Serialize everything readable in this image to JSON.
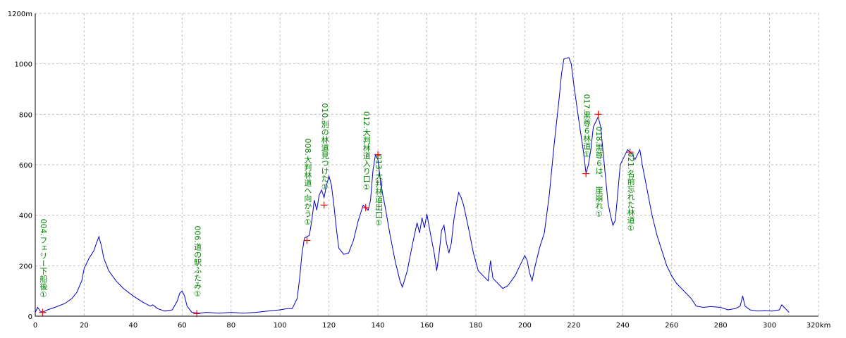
{
  "chart_data": {
    "type": "line",
    "x": [
      0,
      1,
      2,
      3,
      5,
      8,
      12,
      15,
      17,
      19,
      20,
      22,
      24,
      25,
      26,
      27,
      28,
      30,
      33,
      36,
      40,
      44,
      47,
      48,
      50,
      53,
      56,
      58,
      59,
      60,
      61,
      62,
      64,
      67,
      70,
      75,
      80,
      85,
      90,
      95,
      100,
      103,
      105,
      107,
      108,
      109,
      110,
      112,
      113,
      114,
      115,
      116,
      117,
      118,
      119,
      120,
      121,
      122,
      123,
      124,
      126,
      128,
      130,
      132,
      134,
      135,
      136,
      137,
      138,
      139,
      140,
      141,
      142,
      143,
      145,
      147,
      149,
      150,
      152,
      154,
      156,
      157,
      158,
      159,
      160,
      161,
      162,
      163,
      164,
      165,
      166,
      167,
      168,
      169,
      170,
      171,
      172,
      173,
      174,
      175,
      177,
      179,
      181,
      183,
      185,
      186,
      187,
      189,
      191,
      193,
      196,
      198,
      200,
      201,
      202,
      203,
      204,
      206,
      208,
      210,
      212,
      214,
      215,
      216,
      218,
      219,
      220,
      222,
      224,
      225,
      226,
      227,
      228,
      230,
      231,
      232,
      234,
      235,
      236,
      237,
      238,
      239,
      240,
      241,
      242,
      243,
      244,
      245,
      246,
      247,
      248,
      250,
      252,
      254,
      256,
      258,
      260,
      262,
      265,
      268,
      270,
      273,
      276,
      280,
      283,
      286,
      288,
      289,
      290,
      292,
      295,
      298,
      301,
      304,
      305,
      306,
      308
    ],
    "values": [
      15,
      35,
      20,
      15,
      25,
      35,
      50,
      70,
      95,
      140,
      190,
      230,
      260,
      290,
      315,
      280,
      230,
      180,
      140,
      110,
      80,
      55,
      40,
      45,
      30,
      20,
      25,
      60,
      90,
      100,
      80,
      40,
      15,
      12,
      15,
      12,
      15,
      12,
      15,
      20,
      25,
      30,
      30,
      70,
      150,
      250,
      310,
      320,
      380,
      460,
      420,
      480,
      500,
      470,
      520,
      555,
      520,
      440,
      350,
      270,
      245,
      250,
      300,
      380,
      440,
      430,
      420,
      460,
      580,
      640,
      620,
      540,
      480,
      430,
      320,
      220,
      140,
      115,
      180,
      280,
      370,
      330,
      390,
      350,
      405,
      350,
      300,
      250,
      180,
      250,
      340,
      360,
      290,
      250,
      290,
      380,
      440,
      490,
      470,
      440,
      350,
      250,
      180,
      160,
      140,
      220,
      150,
      130,
      110,
      120,
      160,
      200,
      240,
      220,
      170,
      140,
      190,
      270,
      330,
      480,
      680,
      860,
      960,
      1020,
      1025,
      1000,
      920,
      780,
      650,
      565,
      600,
      660,
      750,
      790,
      750,
      650,
      450,
      400,
      360,
      380,
      490,
      600,
      620,
      640,
      660,
      650,
      640,
      620,
      640,
      660,
      600,
      500,
      400,
      320,
      260,
      200,
      160,
      130,
      100,
      70,
      40,
      35,
      38,
      35,
      25,
      30,
      40,
      80,
      40,
      25,
      20,
      22,
      20,
      25,
      45,
      35,
      15
    ],
    "color": "#0000c8",
    "xlim": [
      0,
      320
    ],
    "xticks": [
      0,
      20,
      40,
      60,
      80,
      100,
      120,
      140,
      160,
      180,
      200,
      220,
      240,
      260,
      280,
      300,
      {
        "value": 320,
        "label": "320km"
      }
    ],
    "ylim": [
      0,
      1200
    ],
    "yticks": [
      0,
      200,
      400,
      600,
      800,
      1000,
      {
        "value": 1200,
        "label": "1200m"
      }
    ],
    "grid": true,
    "marker_color": "#ff0000",
    "label_color": "#008000",
    "waypoints": [
      {
        "label": "004.フェリー下船後①",
        "x": 3,
        "y": 15
      },
      {
        "label": "006.道の駅ふたみ①",
        "x": 66,
        "y": 10
      },
      {
        "label": "008.大判林道へ向かう①",
        "x": 111,
        "y": 300
      },
      {
        "label": "010.別の林道見つけた①",
        "x": 118,
        "y": 440
      },
      {
        "label": "012.大判林道入り口①",
        "x": 135,
        "y": 430
      },
      {
        "label": "013.大判林道出口①",
        "x": 140,
        "y": 640
      },
      {
        "label": "017.黒尊６林道①",
        "x": 225,
        "y": 565
      },
      {
        "label": "018.黒尊６は、　崖崩れ①",
        "x": 230,
        "y": 800
      },
      {
        "label": "021.名前忘れた林道①",
        "x": 243,
        "y": 650
      }
    ]
  }
}
